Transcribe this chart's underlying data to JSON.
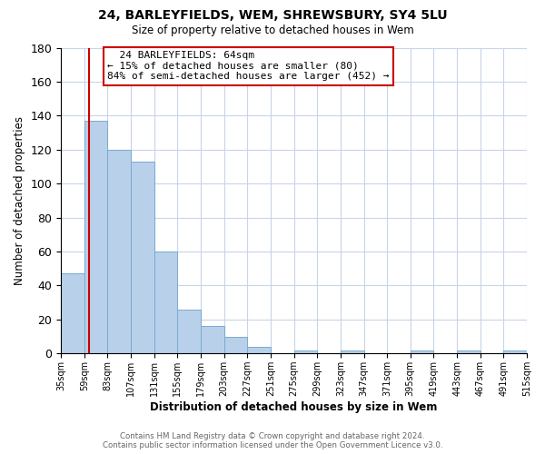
{
  "title": "24, BARLEYFIELDS, WEM, SHREWSBURY, SY4 5LU",
  "subtitle": "Size of property relative to detached houses in Wem",
  "xlabel": "Distribution of detached houses by size in Wem",
  "ylabel": "Number of detached properties",
  "bar_color": "#b8d0ea",
  "bar_edge_color": "#7aaace",
  "background_color": "#ffffff",
  "grid_color": "#c8d4e8",
  "annotation_box_edge": "#cc0000",
  "annotation_line_color": "#cc0000",
  "bins": [
    35,
    59,
    83,
    107,
    131,
    155,
    179,
    203,
    227,
    251,
    275,
    299,
    323,
    347,
    371,
    395,
    419,
    443,
    467,
    491,
    515
  ],
  "counts": [
    47,
    137,
    120,
    113,
    60,
    26,
    16,
    10,
    4,
    0,
    2,
    0,
    2,
    0,
    0,
    2,
    0,
    2,
    0,
    2
  ],
  "property_size": 64,
  "property_name": "24 BARLEYFIELDS",
  "pct_smaller": 15,
  "n_smaller": 80,
  "pct_larger_semi": 84,
  "n_larger_semi": 452,
  "vline_x": 64,
  "ylim": [
    0,
    180
  ],
  "yticks": [
    0,
    20,
    40,
    60,
    80,
    100,
    120,
    140,
    160,
    180
  ],
  "tick_labels": [
    "35sqm",
    "59sqm",
    "83sqm",
    "107sqm",
    "131sqm",
    "155sqm",
    "179sqm",
    "203sqm",
    "227sqm",
    "251sqm",
    "275sqm",
    "299sqm",
    "323sqm",
    "347sqm",
    "371sqm",
    "395sqm",
    "419sqm",
    "443sqm",
    "467sqm",
    "491sqm",
    "515sqm"
  ],
  "footer_line1": "Contains HM Land Registry data © Crown copyright and database right 2024.",
  "footer_line2": "Contains public sector information licensed under the Open Government Licence v3.0."
}
